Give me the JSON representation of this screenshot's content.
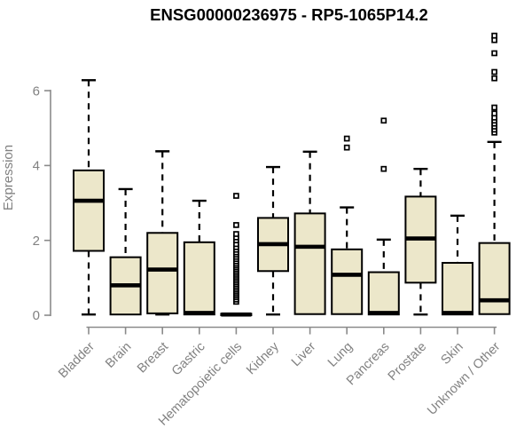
{
  "colors": {
    "box_fill": "#ece7ca",
    "box_stroke": "#000000",
    "median": "#000000",
    "whisker": "#000000",
    "outlier_stroke": "#000000",
    "outlier_fill": "#ffffff",
    "axis": "#8a8a8a",
    "axis_text": "#818181",
    "title_text": "#000000",
    "background": "#ffffff"
  },
  "chart_data": {
    "type": "boxplot",
    "title": "ENSG00000236975 - RP5-1065P14.2",
    "xlabel": "",
    "ylabel": "Expression",
    "yticks": [
      0,
      2,
      4,
      6
    ],
    "ylim": [
      0,
      7.6
    ],
    "grid": false,
    "legend": "none",
    "categories": [
      "Bladder",
      "Brain",
      "Breast",
      "Gastric",
      "Hematopoietic cells",
      "Kidney",
      "Liver",
      "Lung",
      "Pancreas",
      "Prostate",
      "Skin",
      "Unknown / Other"
    ],
    "boxes": [
      {
        "category": "Bladder",
        "whislo": 0.02,
        "q1": 1.72,
        "median": 3.06,
        "q3": 3.87,
        "whishi": 6.28,
        "outliers": []
      },
      {
        "category": "Brain",
        "whislo": 0.01,
        "q1": 0.02,
        "median": 0.8,
        "q3": 1.55,
        "whishi": 3.37,
        "outliers": []
      },
      {
        "category": "Breast",
        "whislo": 0.02,
        "q1": 0.05,
        "median": 1.22,
        "q3": 2.2,
        "whishi": 4.38,
        "outliers": []
      },
      {
        "category": "Gastric",
        "whislo": 0.0,
        "q1": 0.02,
        "median": 0.06,
        "q3": 1.95,
        "whishi": 3.06,
        "outliers": []
      },
      {
        "category": "Hematopoietic cells",
        "whislo": 0.0,
        "q1": 0.0,
        "median": 0.02,
        "q3": 0.04,
        "whishi": 0.06,
        "outliers": [
          0.36,
          0.42,
          0.48,
          0.53,
          0.58,
          0.63,
          0.68,
          0.73,
          0.78,
          0.83,
          0.88,
          0.93,
          0.98,
          1.03,
          1.08,
          1.13,
          1.18,
          1.23,
          1.28,
          1.33,
          1.38,
          1.44,
          1.5,
          1.56,
          1.62,
          1.68,
          1.75,
          1.82,
          1.9,
          2.0,
          2.08,
          2.17,
          2.41,
          3.19
        ]
      },
      {
        "category": "Kidney",
        "whislo": 0.02,
        "q1": 1.18,
        "median": 1.9,
        "q3": 2.6,
        "whishi": 3.96,
        "outliers": []
      },
      {
        "category": "Liver",
        "whislo": 0.01,
        "q1": 0.03,
        "median": 1.83,
        "q3": 2.72,
        "whishi": 4.37,
        "outliers": []
      },
      {
        "category": "Lung",
        "whislo": 0.01,
        "q1": 0.03,
        "median": 1.08,
        "q3": 1.76,
        "whishi": 2.88,
        "outliers": [
          4.48,
          4.72
        ]
      },
      {
        "category": "Pancreas",
        "whislo": 0.0,
        "q1": 0.02,
        "median": 0.06,
        "q3": 1.15,
        "whishi": 2.02,
        "outliers": [
          3.91,
          5.2
        ]
      },
      {
        "category": "Prostate",
        "whislo": 0.02,
        "q1": 0.87,
        "median": 2.05,
        "q3": 3.17,
        "whishi": 3.91,
        "outliers": []
      },
      {
        "category": "Skin",
        "whislo": 0.0,
        "q1": 0.02,
        "median": 0.06,
        "q3": 1.4,
        "whishi": 2.66,
        "outliers": []
      },
      {
        "category": "Unknown / Other",
        "whislo": 0.02,
        "q1": 0.03,
        "median": 0.4,
        "q3": 1.93,
        "whishi": 4.63,
        "outliers": [
          4.88,
          4.96,
          5.04,
          5.12,
          5.2,
          5.28,
          5.39,
          5.55,
          6.33,
          6.5,
          7.0,
          7.35,
          7.47
        ]
      }
    ]
  }
}
